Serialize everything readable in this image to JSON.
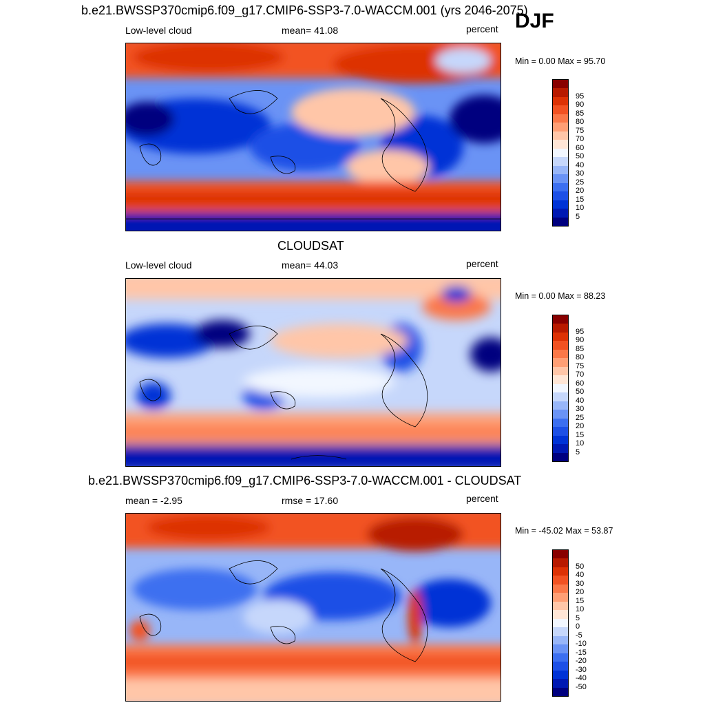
{
  "season": "DJF",
  "panels": [
    {
      "title": "b.e21.BWSSP370cmip6.f09_g17.CMIP6-SSP3-7.0-WACCM.001 (yrs 2046-2075)",
      "left_label": "Low-level cloud",
      "center_label": "mean=  41.08",
      "units": "percent",
      "minmax": "Min =   0.00 Max =  95.70"
    },
    {
      "title": "CLOUDSAT",
      "left_label": "Low-level cloud",
      "center_label": "mean=  44.03",
      "units": "percent",
      "minmax": "Min =   0.00 Max =  88.23"
    },
    {
      "title": "b.e21.BWSSP370cmip6.f09_g17.CMIP6-SSP3-7.0-WACCM.001 - CLOUDSAT",
      "left_label": "mean =  -2.95",
      "center_label": "rmse =  17.60",
      "units": "percent",
      "minmax": "Min = -45.02 Max =  53.87"
    }
  ],
  "colors": {
    "abs_scale": [
      "#00007f",
      "#0019b3",
      "#0033d6",
      "#1d50e6",
      "#3c6ff0",
      "#6a93f5",
      "#98b6f8",
      "#c6d7fb",
      "#f2f7ff",
      "#ffe6d6",
      "#ffc6a8",
      "#ff9f75",
      "#fb7848",
      "#f25222",
      "#dd3205",
      "#b81a00",
      "#880000"
    ],
    "diff_scale": [
      "#00007f",
      "#0019b3",
      "#0033d6",
      "#1d50e6",
      "#3c6ff0",
      "#6a93f5",
      "#98b6f8",
      "#c6d7fb",
      "#f2f7ff",
      "#ffe6d6",
      "#ffc6a8",
      "#ff9f75",
      "#fb7848",
      "#f25222",
      "#dd3205",
      "#b81a00",
      "#880000"
    ]
  },
  "chart_data": [
    {
      "type": "heatmap",
      "title": "b.e21.BWSSP370cmip6.f09_g17.CMIP6-SSP3-7.0-WACCM.001 (yrs 2046-2075)",
      "variable": "Low-level cloud",
      "units": "percent",
      "mean": 41.08,
      "min": 0.0,
      "max": 95.7,
      "colorbar_levels": [
        5,
        10,
        15,
        20,
        25,
        30,
        40,
        50,
        60,
        70,
        75,
        80,
        85,
        90,
        95
      ]
    },
    {
      "type": "heatmap",
      "title": "CLOUDSAT",
      "variable": "Low-level cloud",
      "units": "percent",
      "mean": 44.03,
      "min": 0.0,
      "max": 88.23,
      "colorbar_levels": [
        5,
        10,
        15,
        20,
        25,
        30,
        40,
        50,
        60,
        70,
        75,
        80,
        85,
        90,
        95
      ]
    },
    {
      "type": "heatmap",
      "title": "b.e21.BWSSP370cmip6.f09_g17.CMIP6-SSP3-7.0-WACCM.001 - CLOUDSAT",
      "units": "percent",
      "mean": -2.95,
      "rmse": 17.6,
      "min": -45.02,
      "max": 53.87,
      "colorbar_levels": [
        -50,
        -40,
        -30,
        -20,
        -15,
        -10,
        -5,
        0,
        5,
        10,
        15,
        20,
        30,
        40,
        50
      ]
    }
  ]
}
